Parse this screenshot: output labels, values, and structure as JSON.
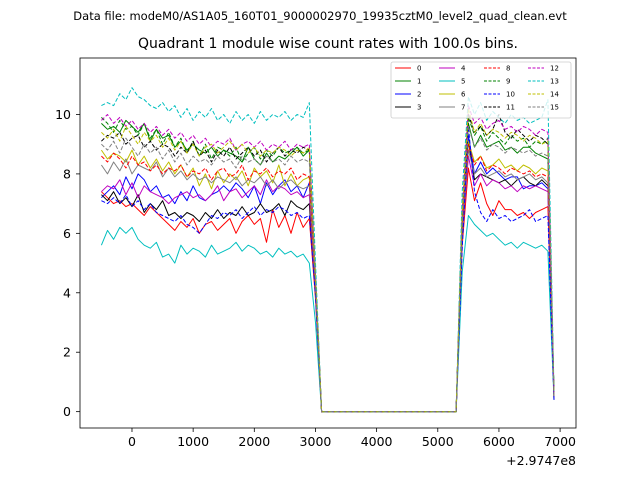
{
  "chart_data": {
    "type": "line",
    "suptitle": "Data file: modeM0/AS1A05_160T01_9000002970_19935cztM0_level2_quad_clean.evt",
    "title": "Quadrant 1 module wise count rates with 100.0s bins.",
    "xlabel": "",
    "ylabel": "",
    "x_offset_label": "+2.9747e8",
    "xlim": [
      -850,
      7260
    ],
    "ylim": [
      -0.55,
      11.9
    ],
    "x_ticks": [
      0,
      1000,
      2000,
      3000,
      4000,
      5000,
      6000,
      7000
    ],
    "x_tick_labels": [
      "0",
      "1000",
      "2000",
      "3000",
      "4000",
      "5000",
      "6000",
      "7000"
    ],
    "y_ticks": [
      0,
      2,
      4,
      6,
      8,
      10
    ],
    "y_tick_labels": [
      "0",
      "2",
      "4",
      "6",
      "8",
      "10"
    ],
    "legend_location": "top-right",
    "x": [
      -500,
      -400,
      -300,
      -200,
      -100,
      0,
      100,
      200,
      300,
      400,
      500,
      600,
      700,
      800,
      900,
      1000,
      1100,
      1200,
      1300,
      1400,
      1500,
      1600,
      1700,
      1800,
      1900,
      2000,
      2100,
      2200,
      2300,
      2400,
      2500,
      2600,
      2700,
      2800,
      2900,
      3000,
      3100,
      5300,
      5400,
      5500,
      5600,
      5700,
      5800,
      5900,
      6000,
      6100,
      6200,
      6300,
      6400,
      6500,
      6600,
      6700,
      6800,
      6900
    ],
    "series": [
      {
        "name": "0",
        "color": "#ff0000",
        "dash": "solid",
        "values": [
          7.4,
          7.2,
          7.0,
          7.1,
          6.9,
          7.0,
          6.8,
          6.6,
          6.9,
          6.7,
          6.5,
          6.3,
          6.1,
          6.4,
          6.2,
          6.5,
          6.0,
          6.3,
          6.4,
          6.1,
          6.3,
          6.5,
          6.0,
          6.4,
          6.6,
          6.3,
          6.5,
          5.7,
          6.8,
          6.2,
          6.6,
          6.0,
          6.7,
          6.2,
          6.5,
          3.8,
          0.0,
          0.0,
          5.6,
          8.2,
          7.1,
          7.7,
          7.0,
          6.6,
          7.1,
          6.8,
          6.8,
          6.6,
          6.7,
          6.5,
          6.7,
          6.8,
          6.9,
          0.4
        ]
      },
      {
        "name": "1",
        "color": "#008000",
        "dash": "solid",
        "values": [
          9.7,
          9.5,
          9.6,
          9.4,
          9.8,
          9.6,
          9.4,
          9.7,
          9.1,
          9.5,
          9.2,
          9.3,
          8.9,
          9.1,
          8.8,
          9.0,
          8.8,
          8.7,
          8.9,
          8.6,
          8.8,
          8.7,
          8.6,
          8.4,
          8.9,
          8.5,
          8.3,
          8.7,
          8.4,
          8.6,
          8.5,
          8.7,
          8.9,
          8.6,
          8.8,
          4.4,
          0.0,
          0.0,
          6.6,
          9.7,
          8.9,
          9.3,
          8.9,
          9.0,
          9.1,
          8.8,
          8.9,
          8.7,
          8.9,
          8.9,
          8.7,
          8.6,
          8.5,
          0.6
        ]
      },
      {
        "name": "2",
        "color": "#0000ff",
        "dash": "solid",
        "values": [
          7.2,
          7.4,
          7.6,
          7.3,
          7.9,
          7.5,
          8.0,
          7.8,
          7.4,
          7.6,
          7.2,
          7.3,
          7.0,
          7.4,
          7.1,
          7.6,
          7.2,
          7.1,
          7.3,
          7.4,
          7.6,
          7.4,
          7.7,
          7.5,
          7.2,
          7.6,
          7.0,
          7.7,
          7.3,
          7.6,
          7.8,
          7.4,
          7.6,
          7.2,
          7.7,
          4.0,
          0.0,
          0.0,
          6.1,
          9.3,
          8.0,
          8.4,
          8.0,
          8.2,
          8.0,
          7.8,
          7.9,
          7.9,
          7.5,
          7.6,
          7.6,
          7.7,
          7.5,
          0.5
        ]
      },
      {
        "name": "3",
        "color": "#000000",
        "dash": "solid",
        "values": [
          7.3,
          7.1,
          7.4,
          7.0,
          7.2,
          6.9,
          7.3,
          6.7,
          7.0,
          6.8,
          7.1,
          6.6,
          6.7,
          6.5,
          6.7,
          6.6,
          6.4,
          6.7,
          6.5,
          6.8,
          6.5,
          6.7,
          6.6,
          6.9,
          6.6,
          6.7,
          7.0,
          6.7,
          6.8,
          7.0,
          6.6,
          7.1,
          6.9,
          6.8,
          7.0,
          4.0,
          0.0,
          0.0,
          6.3,
          9.1,
          7.8,
          8.0,
          7.9,
          7.8,
          7.7,
          7.8,
          7.6,
          7.8,
          7.9,
          7.7,
          7.6,
          7.8,
          7.6,
          0.5
        ]
      },
      {
        "name": "4",
        "color": "#bf00bf",
        "dash": "solid",
        "values": [
          7.4,
          7.6,
          7.5,
          7.8,
          7.3,
          7.7,
          7.2,
          7.6,
          7.4,
          7.3,
          7.2,
          7.0,
          7.2,
          7.3,
          7.4,
          7.2,
          7.3,
          7.1,
          7.3,
          7.6,
          7.1,
          7.4,
          7.5,
          7.2,
          7.4,
          7.6,
          7.3,
          7.8,
          7.4,
          7.6,
          7.5,
          7.3,
          7.4,
          7.2,
          7.3,
          4.0,
          0.0,
          0.0,
          5.9,
          8.6,
          7.6,
          8.0,
          7.6,
          7.8,
          7.7,
          7.5,
          7.6,
          7.4,
          7.6,
          7.5,
          7.6,
          7.5,
          7.4,
          0.5
        ]
      },
      {
        "name": "5",
        "color": "#00bfbf",
        "dash": "solid",
        "values": [
          5.6,
          6.1,
          5.8,
          6.2,
          6.0,
          6.2,
          5.8,
          5.6,
          5.5,
          5.7,
          5.2,
          5.3,
          5.0,
          5.6,
          5.3,
          5.5,
          5.4,
          5.2,
          5.6,
          5.3,
          5.4,
          5.5,
          5.7,
          5.4,
          5.6,
          5.5,
          5.3,
          5.4,
          5.2,
          5.5,
          5.3,
          5.4,
          5.2,
          5.3,
          5.0,
          3.0,
          0.0,
          0.0,
          4.7,
          6.6,
          6.3,
          6.1,
          5.9,
          6.0,
          5.8,
          5.6,
          5.7,
          5.5,
          5.7,
          5.6,
          5.5,
          5.6,
          5.4,
          0.4
        ]
      },
      {
        "name": "6",
        "color": "#bfbf00",
        "dash": "solid",
        "values": [
          8.8,
          8.5,
          8.7,
          8.6,
          8.4,
          8.8,
          8.3,
          8.6,
          8.2,
          8.5,
          8.1,
          8.4,
          8.0,
          8.3,
          7.9,
          8.2,
          7.6,
          8.0,
          7.5,
          8.1,
          7.7,
          8.0,
          7.8,
          8.1,
          7.6,
          8.2,
          7.9,
          8.1,
          7.7,
          8.3,
          7.6,
          8.0,
          7.6,
          7.8,
          7.9,
          4.2,
          0.0,
          0.0,
          6.2,
          9.1,
          8.4,
          8.6,
          8.2,
          8.3,
          8.5,
          8.2,
          8.3,
          8.1,
          8.3,
          8.2,
          8.0,
          8.2,
          8.1,
          0.5
        ]
      },
      {
        "name": "7",
        "color": "#808080",
        "dash": "solid",
        "values": [
          8.3,
          8.0,
          8.4,
          8.1,
          8.5,
          8.0,
          8.3,
          8.2,
          8.1,
          8.4,
          7.9,
          8.2,
          7.9,
          8.1,
          7.8,
          8.0,
          7.8,
          7.9,
          7.7,
          7.9,
          7.8,
          7.7,
          7.9,
          7.6,
          7.8,
          7.7,
          7.9,
          7.6,
          7.8,
          7.5,
          7.7,
          7.8,
          7.6,
          7.5,
          7.6,
          4.0,
          0.0,
          0.0,
          6.0,
          8.8,
          8.0,
          8.2,
          7.9,
          8.0,
          8.1,
          7.9,
          8.0,
          7.8,
          7.9,
          8.0,
          7.8,
          7.9,
          7.7,
          0.5
        ]
      },
      {
        "name": "8",
        "color": "#ff0000",
        "dash": "dashed",
        "values": [
          8.6,
          8.4,
          8.7,
          8.5,
          8.2,
          8.6,
          8.3,
          8.4,
          8.1,
          8.3,
          8.0,
          8.2,
          8.1,
          8.3,
          7.9,
          8.1,
          8.0,
          8.2,
          7.8,
          8.1,
          8.2,
          7.9,
          8.0,
          8.3,
          7.8,
          8.1,
          8.0,
          8.2,
          7.9,
          8.1,
          8.0,
          8.2,
          7.8,
          8.0,
          7.9,
          4.2,
          0.0,
          0.0,
          6.3,
          9.0,
          8.3,
          8.6,
          8.1,
          8.3,
          8.2,
          8.0,
          8.2,
          8.1,
          8.0,
          8.1,
          7.9,
          8.0,
          7.9,
          0.5
        ]
      },
      {
        "name": "9",
        "color": "#008000",
        "dash": "dashed",
        "values": [
          9.9,
          9.7,
          9.4,
          9.8,
          9.5,
          9.6,
          9.3,
          9.7,
          9.2,
          9.5,
          9.0,
          9.4,
          8.9,
          9.2,
          8.7,
          9.1,
          8.6,
          9.0,
          8.5,
          8.9,
          8.8,
          8.6,
          8.9,
          8.4,
          8.7,
          8.9,
          8.5,
          8.8,
          8.6,
          8.9,
          8.7,
          8.8,
          8.9,
          8.7,
          8.8,
          4.5,
          0.0,
          0.0,
          6.7,
          9.9,
          9.3,
          9.6,
          9.1,
          9.4,
          9.2,
          9.0,
          9.3,
          9.1,
          9.2,
          8.9,
          9.1,
          9.0,
          9.2,
          0.6
        ]
      },
      {
        "name": "10",
        "color": "#0000ff",
        "dash": "dashed",
        "values": [
          7.1,
          7.0,
          7.2,
          7.0,
          7.3,
          6.9,
          7.1,
          6.8,
          7.0,
          6.7,
          6.6,
          6.5,
          6.4,
          6.6,
          6.3,
          6.2,
          6.0,
          6.3,
          6.6,
          6.5,
          6.7,
          6.6,
          6.8,
          6.5,
          6.7,
          6.9,
          6.6,
          6.8,
          6.7,
          6.9,
          6.8,
          6.6,
          6.7,
          6.5,
          6.6,
          3.9,
          0.0,
          0.0,
          5.5,
          9.6,
          7.4,
          6.7,
          6.4,
          6.8,
          6.5,
          6.6,
          6.4,
          6.5,
          6.6,
          6.8,
          6.4,
          6.5,
          6.6,
          0.4
        ]
      },
      {
        "name": "11",
        "color": "#000000",
        "dash": "dashed",
        "values": [
          9.1,
          9.3,
          9.2,
          9.4,
          9.0,
          9.2,
          9.3,
          8.9,
          9.1,
          8.8,
          9.0,
          8.9,
          8.6,
          8.9,
          8.7,
          9.1,
          8.6,
          8.8,
          8.4,
          8.8,
          8.6,
          8.9,
          8.5,
          8.7,
          8.9,
          8.6,
          8.8,
          8.4,
          8.7,
          8.9,
          8.6,
          8.8,
          8.7,
          8.9,
          8.8,
          4.5,
          0.0,
          0.0,
          6.6,
          10.0,
          9.4,
          9.6,
          9.3,
          9.5,
          10.0,
          9.4,
          9.2,
          9.5,
          9.3,
          9.1,
          9.3,
          9.2,
          9.0,
          0.6
        ]
      },
      {
        "name": "12",
        "color": "#bf00bf",
        "dash": "dashed",
        "values": [
          9.8,
          10.0,
          9.7,
          9.9,
          9.6,
          9.8,
          9.5,
          9.7,
          9.4,
          9.6,
          9.3,
          9.5,
          9.2,
          9.4,
          9.1,
          9.3,
          9.0,
          9.2,
          8.9,
          9.1,
          9.0,
          9.2,
          8.8,
          9.0,
          9.1,
          8.9,
          9.1,
          8.8,
          9.0,
          8.9,
          9.1,
          8.8,
          9.0,
          8.9,
          9.0,
          4.6,
          0.0,
          0.0,
          6.8,
          10.3,
          9.7,
          9.9,
          9.5,
          9.7,
          9.8,
          9.5,
          9.6,
          9.4,
          9.6,
          9.5,
          9.3,
          9.5,
          9.4,
          0.6
        ]
      },
      {
        "name": "13",
        "color": "#00bfbf",
        "dash": "dashed",
        "values": [
          10.3,
          10.4,
          10.3,
          10.7,
          10.5,
          10.9,
          10.6,
          10.5,
          10.3,
          10.2,
          10.4,
          10.1,
          10.3,
          9.9,
          10.2,
          9.8,
          10.1,
          9.9,
          10.2,
          9.8,
          10.0,
          9.7,
          10.1,
          9.8,
          10.0,
          9.7,
          10.1,
          9.8,
          10.0,
          9.9,
          10.1,
          9.8,
          10.0,
          9.9,
          10.4,
          5.0,
          0.0,
          0.0,
          7.4,
          10.6,
          10.0,
          10.4,
          9.8,
          10.1,
          9.9,
          9.7,
          10.0,
          9.8,
          9.9,
          9.7,
          9.8,
          9.9,
          10.5,
          0.7
        ]
      },
      {
        "name": "14",
        "color": "#bfbf00",
        "dash": "dashed",
        "values": [
          9.4,
          9.2,
          9.5,
          9.1,
          9.6,
          9.3,
          9.0,
          9.4,
          9.1,
          9.3,
          8.9,
          9.2,
          8.8,
          9.1,
          8.7,
          9.0,
          8.6,
          8.9,
          9.0,
          8.7,
          8.9,
          9.1,
          8.8,
          9.0,
          8.7,
          8.9,
          8.6,
          8.8,
          8.7,
          8.9,
          8.8,
          8.6,
          8.8,
          8.7,
          8.9,
          4.5,
          0.0,
          0.0,
          6.7,
          10.2,
          9.4,
          9.7,
          9.3,
          9.5,
          9.4,
          9.2,
          9.4,
          9.3,
          9.1,
          9.3,
          9.2,
          9.0,
          9.1,
          0.6
        ]
      },
      {
        "name": "15",
        "color": "#808080",
        "dash": "dashed",
        "values": [
          9.0,
          8.8,
          9.1,
          8.7,
          9.2,
          8.9,
          8.6,
          9.0,
          8.7,
          8.9,
          8.5,
          8.8,
          8.4,
          8.7,
          8.3,
          8.6,
          8.4,
          8.5,
          8.3,
          8.6,
          8.4,
          8.5,
          8.2,
          8.6,
          8.4,
          8.5,
          8.3,
          8.6,
          8.4,
          8.5,
          8.3,
          8.6,
          8.4,
          8.5,
          8.4,
          4.3,
          0.0,
          0.0,
          6.4,
          9.6,
          8.9,
          9.2,
          8.8,
          9.0,
          8.9,
          8.7,
          8.9,
          8.8,
          8.7,
          8.8,
          8.6,
          8.7,
          8.6,
          0.5
        ]
      }
    ]
  }
}
